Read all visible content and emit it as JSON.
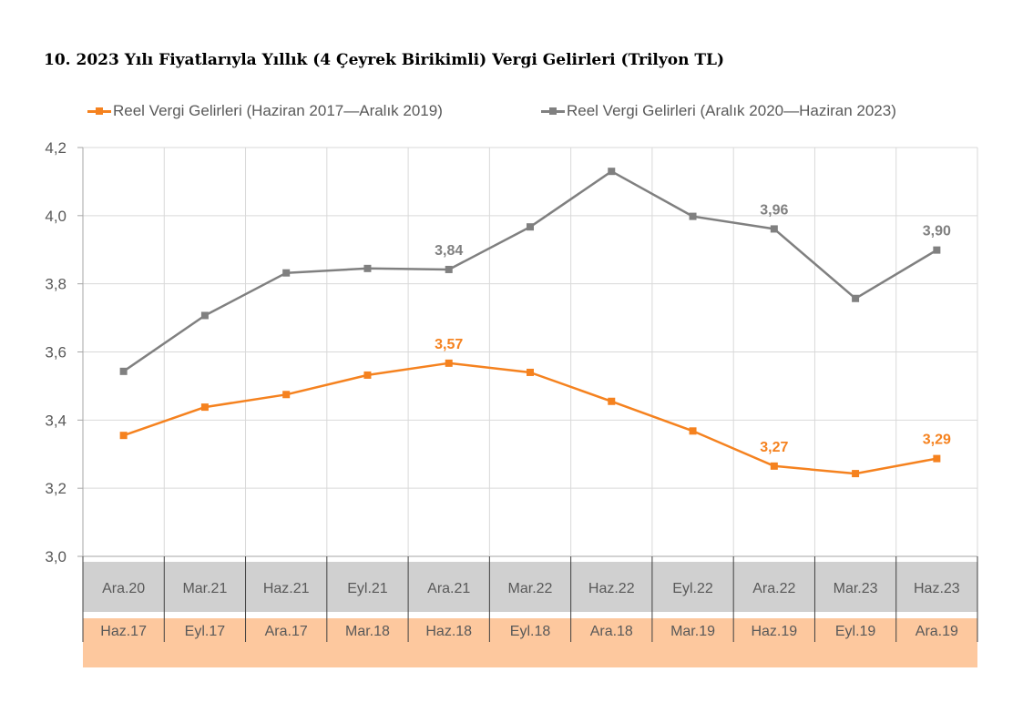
{
  "title": "10. 2023 Yılı Fiyatlarıyla Yıllık (4 Çeyrek Birikimli) Vergi Gelirleri (Trilyon TL)",
  "colors": {
    "orange": "#f5821f",
    "gray": "#808080",
    "gray_band": "#d0d0d0",
    "orange_band": "#fdc89e",
    "grid": "#d9d9d9",
    "text": "#595959"
  },
  "chart_data": {
    "type": "line",
    "title": "10. 2023 Yılı Fiyatlarıyla Yıllık (4 Çeyrek Birikimli) Vergi Gelirleri (Trilyon TL)",
    "ylim": [
      3.0,
      4.2
    ],
    "yticks": [
      "4,2",
      "4,0",
      "3,8",
      "3,6",
      "3,4",
      "3,2",
      "3,0"
    ],
    "grid": true,
    "legend_position": "top",
    "categories_upper": [
      "Ara.20",
      "Mar.21",
      "Haz.21",
      "Eyl.21",
      "Ara.21",
      "Mar.22",
      "Haz.22",
      "Eyl.22",
      "Ara.22",
      "Mar.23",
      "Haz.23"
    ],
    "categories_lower": [
      "Haz.17",
      "Eyl.17",
      "Ara.17",
      "Mar.18",
      "Haz.18",
      "Eyl.18",
      "Ara.18",
      "Mar.19",
      "Haz.19",
      "Eyl.19",
      "Ara.19"
    ],
    "series": [
      {
        "name": "Reel Vergi Gelirleri (Haziran 2017—Aralık 2019)",
        "color": "#f5821f",
        "axis": "lower",
        "values": [
          3.355,
          3.438,
          3.475,
          3.532,
          3.567,
          3.54,
          3.455,
          3.368,
          3.265,
          3.243,
          3.287
        ],
        "labels": {
          "4": "3,57",
          "8": "3,27",
          "10": "3,29"
        }
      },
      {
        "name": "Reel Vergi Gelirleri (Aralık 2020—Haziran 2023)",
        "color": "#808080",
        "axis": "upper",
        "values": [
          3.543,
          3.707,
          3.832,
          3.845,
          3.842,
          3.967,
          4.13,
          3.998,
          3.961,
          3.757,
          3.899
        ],
        "labels": {
          "4": "3,84",
          "8": "3,96",
          "10": "3,90"
        }
      }
    ]
  }
}
